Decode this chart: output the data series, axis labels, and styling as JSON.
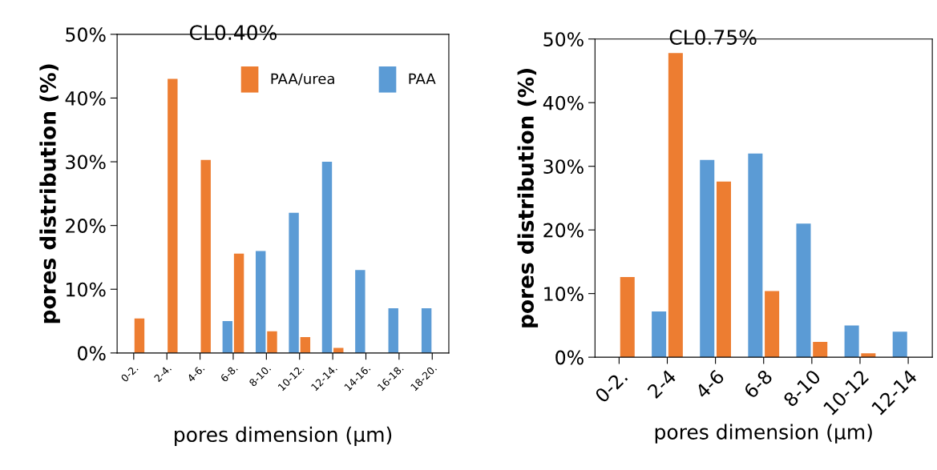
{
  "chart_data": [
    {
      "type": "bar",
      "title": "CL0.40%",
      "xlabel": "pores dimension (μm)",
      "ylabel": "pores distribution (%)",
      "categories": [
        "0-2.",
        "2-4.",
        "4-6.",
        "6-8.",
        "8-10.",
        "10-12.",
        "12-14.",
        "14-16.",
        "16-18.",
        "18-20."
      ],
      "series": [
        {
          "name": "PAA",
          "color": "#5b9bd5",
          "values": [
            0,
            0,
            0,
            5,
            16,
            22,
            30,
            13,
            7,
            7
          ]
        },
        {
          "name": "PAA/urea",
          "color": "#ed7d31",
          "values": [
            5.4,
            43,
            30.3,
            15.6,
            3.4,
            2.5,
            0.8,
            0,
            0,
            0
          ]
        }
      ],
      "ylim": [
        0,
        50
      ],
      "yticks": [
        {
          "value": 0,
          "label": "0%"
        },
        {
          "value": 10,
          "label": "10%"
        },
        {
          "value": 20,
          "label": "20%"
        },
        {
          "value": 30,
          "label": "30%"
        },
        {
          "value": 40,
          "label": "40%"
        },
        {
          "value": 50,
          "label": "50%"
        }
      ],
      "legend": "top right",
      "grid": false
    },
    {
      "type": "bar",
      "title": "CL0.75%",
      "xlabel": "pores dimension (μm)",
      "ylabel": "pores distribution (%)",
      "categories": [
        "0-2.",
        "2-4",
        "4-6",
        "6-8",
        "8-10",
        "10-12",
        "12-14"
      ],
      "series": [
        {
          "color": "#5b9bd5",
          "values": [
            0,
            7.2,
            31,
            32,
            21,
            5,
            4
          ]
        },
        {
          "color": "#ed7d31",
          "values": [
            12.6,
            47.8,
            27.6,
            10.4,
            2.4,
            0.6,
            0
          ]
        }
      ],
      "ylim": [
        0,
        50
      ],
      "yticks": [
        {
          "value": 0,
          "label": "0%"
        },
        {
          "value": 10,
          "label": "10%"
        },
        {
          "value": 20,
          "label": "20%"
        },
        {
          "value": 30,
          "label": "30%"
        },
        {
          "value": 40,
          "label": "40%"
        },
        {
          "value": 50,
          "label": "50%"
        }
      ],
      "grid": false
    }
  ]
}
